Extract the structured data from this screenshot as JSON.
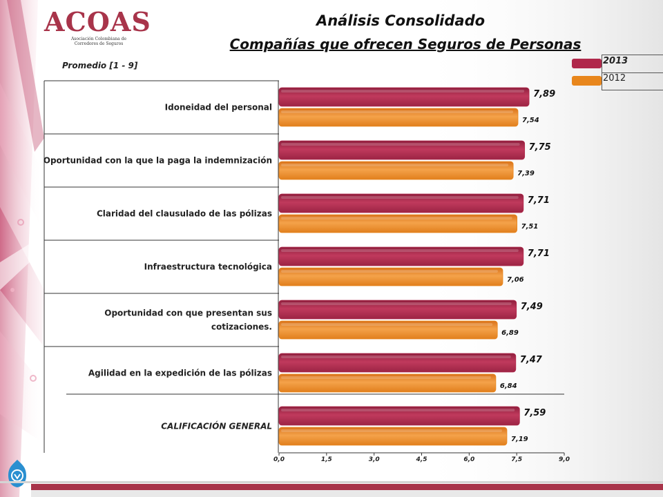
{
  "header": {
    "logo_name": "ACOAS",
    "logo_subtitle": "Asociación Colombiana de Corredores de Seguros",
    "title_line1": "Análisis Consolidado",
    "title_line2": "Compañías que ofrecen Seguros de Personas"
  },
  "scale_label": "Promedio  [1 - 9]",
  "colors": {
    "series_2013": "#b0284b",
    "series_2012": "#e8861c",
    "brand": "#a8344a"
  },
  "chart_data": {
    "type": "bar",
    "orientation": "horizontal",
    "categories": [
      "Idoneidad del personal",
      "Oportunidad con la que la paga la indemnización",
      "Claridad del clausulado de las pólizas",
      "Infraestructura tecnológica",
      "Oportunidad con que presentan sus cotizaciones.",
      "Agilidad en la expedición de las pólizas",
      "CALIFICACIÓN GENERAL"
    ],
    "series": [
      {
        "name": "2013",
        "values": [
          7.89,
          7.75,
          7.71,
          7.71,
          7.49,
          7.47,
          7.59
        ],
        "labels": [
          "7,89",
          "7,75",
          "7,71",
          "7,71",
          "7,49",
          "7,47",
          "7,59"
        ]
      },
      {
        "name": "2012",
        "values": [
          7.54,
          7.39,
          7.51,
          7.06,
          6.89,
          6.84,
          7.19
        ],
        "labels": [
          "7,54",
          "7,39",
          "7,51",
          "7,06",
          "6,89",
          "6,84",
          "7,19"
        ]
      }
    ],
    "xlim": [
      0,
      9
    ],
    "x_ticks": [
      0,
      1.5,
      3.0,
      4.5,
      6.0,
      7.5,
      9.0
    ],
    "x_tick_labels": [
      "0,0",
      "1,5",
      "3,0",
      "4,5",
      "6,0",
      "7,5",
      "9,0"
    ],
    "legend_position": "top-right",
    "grid": false
  }
}
